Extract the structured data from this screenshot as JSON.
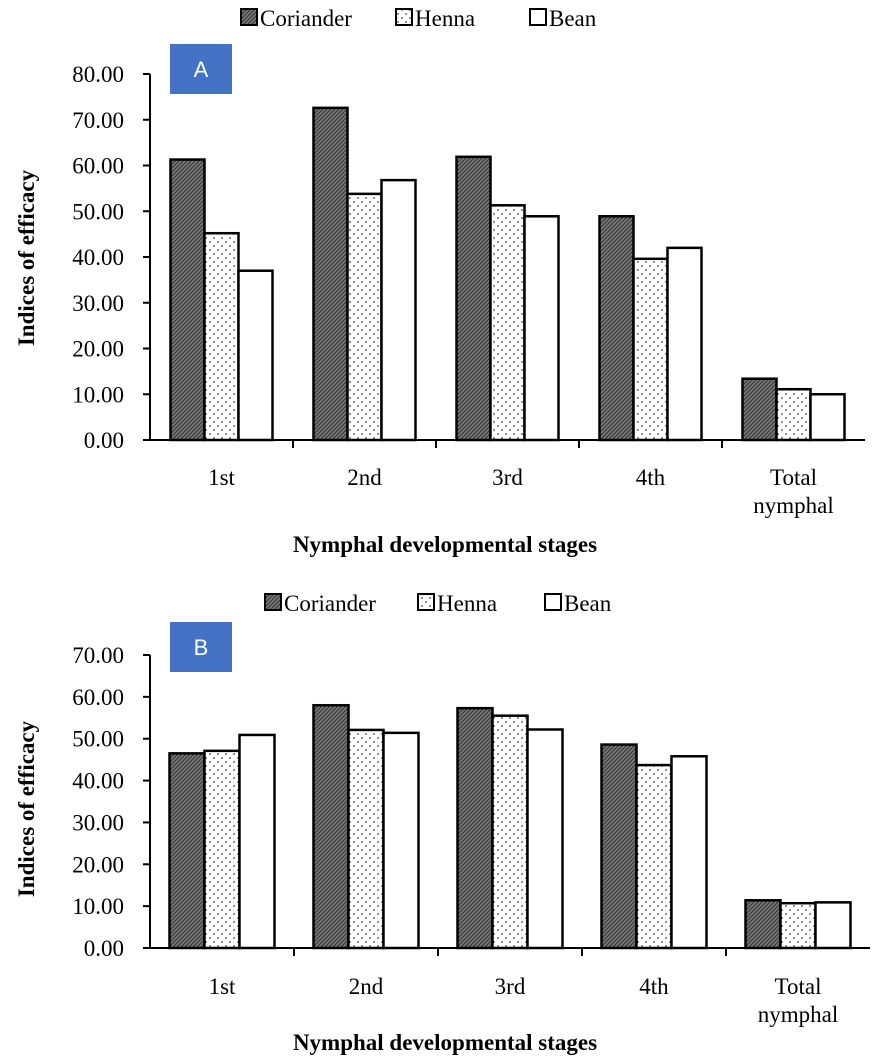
{
  "chart_data": [
    {
      "type": "bar",
      "panel_label": "A",
      "categories": [
        "1st",
        "2nd",
        "3rd",
        "4th",
        "Total\nnymphal"
      ],
      "series": [
        {
          "name": "Coriander",
          "values": [
            61.3,
            72.6,
            61.9,
            48.9,
            13.4
          ]
        },
        {
          "name": "Henna",
          "values": [
            45.2,
            53.8,
            51.3,
            39.6,
            11.1
          ]
        },
        {
          "name": "Bean",
          "values": [
            37.0,
            56.8,
            48.9,
            42.0,
            10.0
          ]
        }
      ],
      "xlabel": "Nymphal developmental stages",
      "ylabel": "Indices of efficacy",
      "ylim": [
        0,
        80
      ],
      "yticks": [
        "0.00",
        "10.00",
        "20.00",
        "30.00",
        "40.00",
        "50.00",
        "60.00",
        "70.00",
        "80.00"
      ],
      "legend_position": "top"
    },
    {
      "type": "bar",
      "panel_label": "B",
      "categories": [
        "1st",
        "2nd",
        "3rd",
        "4th",
        "Total\nnymphal"
      ],
      "series": [
        {
          "name": "Coriander",
          "values": [
            46.5,
            58.0,
            57.3,
            48.6,
            11.4
          ]
        },
        {
          "name": "Henna",
          "values": [
            47.1,
            52.1,
            55.5,
            43.7,
            10.7
          ]
        },
        {
          "name": "Bean",
          "values": [
            50.9,
            51.4,
            52.2,
            45.8,
            10.9
          ]
        }
      ],
      "xlabel": "Nymphal developmental stages",
      "ylabel": "Indices of efficacy",
      "ylim": [
        0,
        70
      ],
      "yticks": [
        "0.00",
        "10.00",
        "20.00",
        "30.00",
        "40.00",
        "50.00",
        "60.00",
        "70.00"
      ],
      "legend_position": "top"
    }
  ],
  "colors": {
    "panel_label_bg": "#4472C4",
    "coriander_fill": "#6f6f6f",
    "henna_fill": "#ffffff",
    "bean_fill": "#ffffff"
  }
}
